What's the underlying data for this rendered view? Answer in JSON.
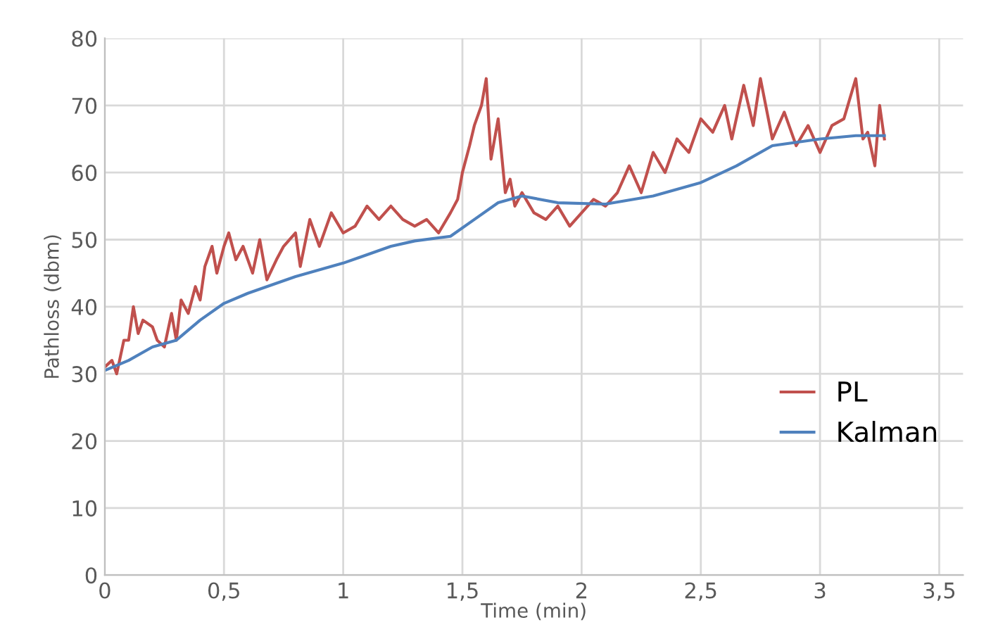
{
  "chart_data": {
    "type": "line",
    "xlabel": "Time (min)",
    "ylabel": "Pathloss (dbm)",
    "xlim": [
      0,
      3.6
    ],
    "ylim": [
      0,
      80
    ],
    "xticks": [
      0,
      {
        "value": 0.5,
        "label": "0,5"
      },
      1,
      {
        "value": 1.5,
        "label": "1,5"
      },
      2,
      {
        "value": 2.5,
        "label": "2,5"
      },
      3,
      {
        "value": 3.5,
        "label": "3,5"
      }
    ],
    "yticks": [
      0,
      10,
      20,
      30,
      40,
      50,
      60,
      70,
      80
    ],
    "grid": true,
    "legend": "right",
    "marker": "none",
    "line_style": "solid",
    "series": [
      {
        "name": "PL",
        "color": "#c0504d",
        "x": [
          0,
          0.03,
          0.05,
          0.08,
          0.1,
          0.12,
          0.14,
          0.16,
          0.2,
          0.22,
          0.25,
          0.28,
          0.3,
          0.32,
          0.35,
          0.38,
          0.4,
          0.42,
          0.45,
          0.47,
          0.5,
          0.52,
          0.55,
          0.58,
          0.62,
          0.65,
          0.68,
          0.72,
          0.75,
          0.8,
          0.82,
          0.86,
          0.9,
          0.95,
          1.0,
          1.05,
          1.1,
          1.15,
          1.2,
          1.25,
          1.3,
          1.35,
          1.4,
          1.45,
          1.48,
          1.5,
          1.53,
          1.55,
          1.58,
          1.6,
          1.62,
          1.65,
          1.68,
          1.7,
          1.72,
          1.75,
          1.8,
          1.85,
          1.9,
          1.95,
          2.0,
          2.05,
          2.1,
          2.15,
          2.2,
          2.25,
          2.3,
          2.35,
          2.4,
          2.45,
          2.5,
          2.55,
          2.6,
          2.63,
          2.68,
          2.72,
          2.75,
          2.8,
          2.85,
          2.9,
          2.95,
          3.0,
          3.05,
          3.1,
          3.15,
          3.18,
          3.2,
          3.23,
          3.25,
          3.27
        ],
        "values": [
          31,
          32,
          30,
          35,
          35,
          40,
          36,
          38,
          37,
          35,
          34,
          39,
          35,
          41,
          39,
          43,
          41,
          46,
          49,
          45,
          49,
          51,
          47,
          49,
          45,
          50,
          44,
          47,
          49,
          51,
          46,
          53,
          49,
          54,
          51,
          52,
          55,
          53,
          55,
          53,
          52,
          53,
          51,
          54,
          56,
          60,
          64,
          67,
          70,
          74,
          62,
          68,
          57,
          59,
          55,
          57,
          54,
          53,
          55,
          52,
          54,
          56,
          55,
          57,
          61,
          57,
          63,
          60,
          65,
          63,
          68,
          66,
          70,
          65,
          73,
          67,
          74,
          65,
          69,
          64,
          67,
          63,
          67,
          68,
          74,
          65,
          66,
          61,
          70,
          65
        ]
      },
      {
        "name": "Kalman",
        "color": "#4f81bd",
        "x": [
          0,
          0.1,
          0.2,
          0.3,
          0.4,
          0.5,
          0.6,
          0.8,
          1.0,
          1.2,
          1.3,
          1.45,
          1.55,
          1.65,
          1.75,
          1.9,
          2.1,
          2.3,
          2.5,
          2.65,
          2.8,
          3.0,
          3.15,
          3.27
        ],
        "values": [
          30.5,
          32,
          34,
          35,
          38,
          40.5,
          42,
          44.5,
          46.5,
          49,
          49.8,
          50.5,
          53,
          55.5,
          56.5,
          55.5,
          55.3,
          56.5,
          58.5,
          61,
          64,
          65,
          65.5,
          65.5
        ]
      }
    ]
  }
}
